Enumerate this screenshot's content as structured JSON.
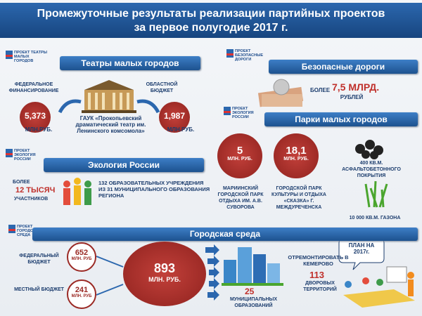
{
  "header": {
    "title": "Промежуточные результаты реализации партийных проектов за первое полугодие 2017 г."
  },
  "theaters": {
    "logo": "ПРОЕКТ ТЕАТРЫ МАЛЫХ ГОРОДОВ",
    "heading": "Театры малых городов",
    "federal_label": "ФЕДЕРАЛЬНОЕ ФИНАНСИРОВАНИЕ",
    "federal_amount": "5,373",
    "federal_unit": "МЛН.РУБ.",
    "regional_label": "ОБЛАСТНОЙ БЮДЖЕТ",
    "regional_amount": "1,987",
    "regional_unit": "МЛН.РУБ.",
    "venue": "ГАУК «Прокопьевский драматический театр им. Ленинского комсомола»"
  },
  "roads": {
    "logo": "ПРОЕКТ БЕЗОПАСНЫЕ ДОРОГИ",
    "heading": "Безопасные дороги",
    "prefix": "БОЛЕЕ",
    "amount": "7,5 МЛРД.",
    "unit": "РУБЛЕЙ"
  },
  "parks": {
    "logo": "ПРОЕКТ ЭКОЛОГИЯ РОССИИ",
    "heading": "Парки малых городов",
    "items": [
      {
        "amount": "5",
        "unit": "МЛН. РУБ.",
        "caption": "МАРИИНСКИЙ ГОРОДСКОЙ ПАРК ОТДЫХА ИМ. А.В. СУВОРОВА"
      },
      {
        "amount": "18,1",
        "unit": "МЛН. РУБ.",
        "caption": "ГОРОДСКОЙ ПАРК КУЛЬТУРЫ И ОТДЫХА «СКАЗКА» Г. МЕЖДУРЕЧЕНСКА"
      }
    ],
    "asphalt": "400 КВ.М. АСФАЛЬТОБЕТОННОГО ПОКРЫТИЯ",
    "lawn": "10 000 КВ.М. ГАЗОНА"
  },
  "ecology": {
    "logo": "ПРОЕКТ ЭКОЛОГИЯ РОССИИ",
    "heading": "Экология России",
    "prefix": "БОЛЕЕ",
    "participants": "12 ТЫСЯЧ",
    "participants_label": "УЧАСТНИКОВ",
    "schools": "132 ОБРАЗОВАТЕЛЬНЫХ УЧРЕЖДЕНИЯ ИЗ 31 МУНИЦИПАЛЬНОГО ОБРАЗОВАНИЯ РЕГИОНА"
  },
  "urban": {
    "logo": "ПРОЕКТ ГОРОДСКАЯ СРЕДА",
    "heading": "Городская среда",
    "federal_label": "ФЕДЕРАЛЬНЫЙ БЮДЖЕТ",
    "federal_amount": "652",
    "federal_unit": "МЛН. РУБ",
    "local_label": "МЕСТНЫЙ БЮДЖЕТ",
    "local_amount": "241",
    "local_unit": "МЛН. РУБ",
    "total_amount": "893",
    "total_unit": "МЛН. РУБ.",
    "municipalities": "25",
    "municipalities_label": "МУНИЦИПАЛЬНЫХ ОБРАЗОВАНИЙ",
    "repair_label": "ОТРЕМОНТИРОВАТЬ В КЕМЕРОВО",
    "yards": "113",
    "yards_label": "ДВОРОВЫХ ТЕРРИТОРИЙ",
    "plan": "ПЛАН НА 2017г."
  }
}
